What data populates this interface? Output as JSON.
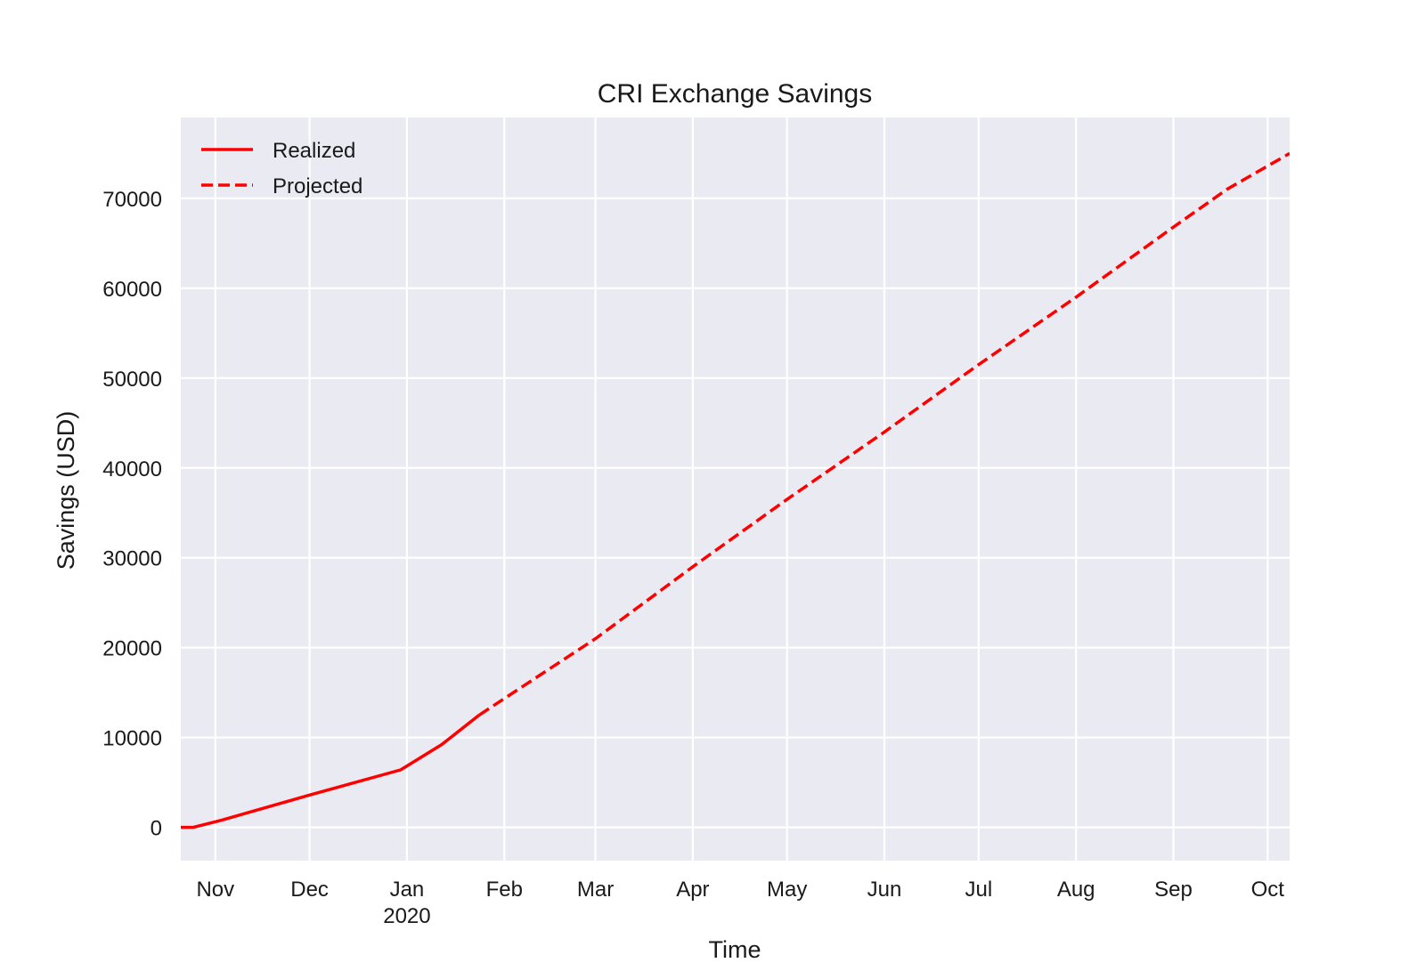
{
  "chart_data": {
    "type": "line",
    "title": "CRI Exchange Savings",
    "xlabel": "Time",
    "ylabel": "Savings (USD)",
    "x_axis_type": "date",
    "xlim": [
      "2019-10-21",
      "2020-10-08"
    ],
    "ylim": [
      -3700,
      79000
    ],
    "x_ticks": [
      {
        "date": "2019-11-01",
        "label": "Nov"
      },
      {
        "date": "2019-12-01",
        "label": "Dec"
      },
      {
        "date": "2020-01-01",
        "label": "Jan",
        "sublabel": "2020"
      },
      {
        "date": "2020-02-01",
        "label": "Feb"
      },
      {
        "date": "2020-03-01",
        "label": "Mar"
      },
      {
        "date": "2020-04-01",
        "label": "Apr"
      },
      {
        "date": "2020-05-01",
        "label": "May"
      },
      {
        "date": "2020-06-01",
        "label": "Jun"
      },
      {
        "date": "2020-07-01",
        "label": "Jul"
      },
      {
        "date": "2020-08-01",
        "label": "Aug"
      },
      {
        "date": "2020-09-01",
        "label": "Sep"
      },
      {
        "date": "2020-10-01",
        "label": "Oct"
      }
    ],
    "y_ticks": [
      0,
      10000,
      20000,
      30000,
      40000,
      50000,
      60000,
      70000
    ],
    "grid": true,
    "legend_position": "top-left",
    "series": [
      {
        "name": "Realized",
        "style": "solid",
        "color": "#ff0000",
        "x": [
          "2019-10-21",
          "2019-10-25",
          "2019-11-03",
          "2019-12-01",
          "2019-12-30",
          "2020-01-12",
          "2020-01-24"
        ],
        "y": [
          0,
          0,
          800,
          3600,
          6400,
          9200,
          12500
        ]
      },
      {
        "name": "Projected",
        "style": "dashed",
        "color": "#ff0000",
        "x": [
          "2020-01-24",
          "2020-03-01",
          "2020-04-01",
          "2020-05-01",
          "2020-06-01",
          "2020-07-01",
          "2020-08-01",
          "2020-09-01",
          "2020-09-18",
          "2020-10-08"
        ],
        "y": [
          12500,
          21000,
          29000,
          36500,
          44000,
          51500,
          59000,
          66800,
          71000,
          75000
        ]
      }
    ]
  },
  "colors": {
    "plot_background": "#eaeaf2",
    "grid": "#ffffff",
    "series": "#ff0000"
  }
}
